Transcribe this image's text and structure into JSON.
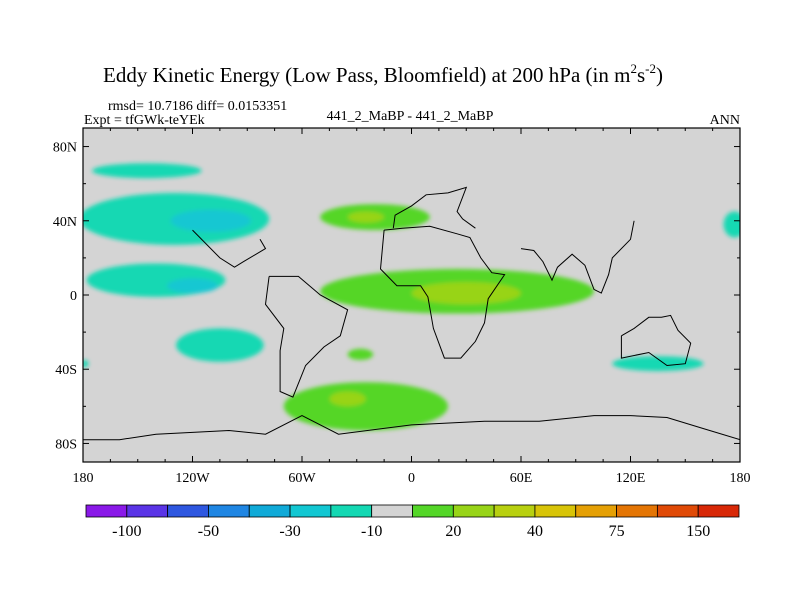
{
  "chart_data": {
    "type": "heatmap",
    "title": "Eddy Kinetic Energy (Low Pass, Bloomfield) at 200 hPa (in m",
    "title_unit_sup1": "2",
    "title_unit_s": "s",
    "title_unit_sup2": "-2",
    "title_unit_close": ")",
    "stats_line": "rmsd= 10.7186 diff= 0.0153351",
    "expt_label": "Expt = tfGWk-teYEk",
    "comparison_label": "441_2_MaBP - 441_2_MaBP",
    "season": "ANN",
    "xlim": [
      -180,
      180
    ],
    "ylim": [
      -90,
      90
    ],
    "xticks": [
      {
        "value": -180,
        "label": "180"
      },
      {
        "value": -120,
        "label": "120W"
      },
      {
        "value": -60,
        "label": "60W"
      },
      {
        "value": 0,
        "label": "0"
      },
      {
        "value": 60,
        "label": "60E"
      },
      {
        "value": 120,
        "label": "120E"
      },
      {
        "value": 180,
        "label": "180"
      }
    ],
    "yticks": [
      {
        "value": 80,
        "label": "80N"
      },
      {
        "value": 40,
        "label": "40N"
      },
      {
        "value": 0,
        "label": "0"
      },
      {
        "value": -40,
        "label": "40S"
      },
      {
        "value": -80,
        "label": "80S"
      }
    ],
    "background_color": "#d4d4d4",
    "colorbar": {
      "colors": [
        "#8a19e8",
        "#5a34e6",
        "#2e57e0",
        "#1f86e3",
        "#10aad8",
        "#12c7d2",
        "#14d8b3",
        "#d4d4d4",
        "#54d628",
        "#98d418",
        "#b8d010",
        "#d8c408",
        "#e5a005",
        "#e47504",
        "#e04a06",
        "#d82807"
      ],
      "labels": [
        {
          "after_box": 1,
          "text": "-100"
        },
        {
          "after_box": 3,
          "text": "-50"
        },
        {
          "after_box": 5,
          "text": "-30"
        },
        {
          "after_box": 7,
          "text": "-10"
        },
        {
          "after_box": 9,
          "text": "20"
        },
        {
          "after_box": 11,
          "text": "40"
        },
        {
          "after_box": 13,
          "text": "75"
        },
        {
          "after_box": 15,
          "text": "150"
        }
      ]
    },
    "regions": [
      {
        "name": "north-pacific-negative-band",
        "lon": -130,
        "lat": 41,
        "rlon": 52,
        "rlat": 14,
        "fill": "#14d8b3"
      },
      {
        "name": "north-pacific-core-negative",
        "lon": -110,
        "lat": 40,
        "rlon": 22,
        "rlat": 6,
        "fill": "#12c7d2"
      },
      {
        "name": "arctic-negative-streak",
        "lon": -145,
        "lat": 67,
        "rlon": 30,
        "rlat": 4,
        "fill": "#14d8b3"
      },
      {
        "name": "tropical-pacific-negative",
        "lon": -140,
        "lat": 8,
        "rlon": 38,
        "rlat": 9,
        "fill": "#14d8b3"
      },
      {
        "name": "tropical-pacific-core-negative",
        "lon": -120,
        "lat": 5,
        "rlon": 14,
        "rlat": 4,
        "fill": "#12c7d2"
      },
      {
        "name": "south-pacific-negative",
        "lon": -105,
        "lat": -27,
        "rlon": 24,
        "rlat": 9,
        "fill": "#14d8b3"
      },
      {
        "name": "north-atlantic-positive",
        "lon": -20,
        "lat": 42,
        "rlon": 30,
        "rlat": 7,
        "fill": "#54d628"
      },
      {
        "name": "north-atlantic-core-positive",
        "lon": -25,
        "lat": 42,
        "rlon": 10,
        "rlat": 3,
        "fill": "#98d418"
      },
      {
        "name": "equatorial-positive-band",
        "lon": 25,
        "lat": 2,
        "rlon": 75,
        "rlat": 12,
        "fill": "#54d628"
      },
      {
        "name": "equatorial-core-positive",
        "lon": 30,
        "lat": 1,
        "rlon": 30,
        "rlat": 6,
        "fill": "#98d418"
      },
      {
        "name": "south-atlantic-small-positive",
        "lon": -28,
        "lat": -32,
        "rlon": 7,
        "rlat": 3,
        "fill": "#54d628"
      },
      {
        "name": "southern-positive-band",
        "lon": -25,
        "lat": -60,
        "rlon": 45,
        "rlat": 13,
        "fill": "#54d628"
      },
      {
        "name": "southern-core-positive",
        "lon": -35,
        "lat": -56,
        "rlon": 10,
        "rlat": 4,
        "fill": "#98d418"
      },
      {
        "name": "southwest-pacific-negative",
        "lon": 135,
        "lat": -37,
        "rlon": 25,
        "rlat": 4,
        "fill": "#14d8b3"
      },
      {
        "name": "northeast-pacific-negative",
        "lon": 177,
        "lat": 38,
        "rlon": 6,
        "rlat": 7,
        "fill": "#14d8b3"
      },
      {
        "name": "west-edge-negative-dot",
        "lon": -179,
        "lat": -37,
        "rlon": 2,
        "rlat": 2,
        "fill": "#14d8b3"
      }
    ],
    "coastlines": [
      {
        "name": "africa-coastline",
        "points": [
          [
            -15,
            35
          ],
          [
            -5,
            36
          ],
          [
            10,
            37
          ],
          [
            25,
            33
          ],
          [
            32,
            31
          ],
          [
            38,
            20
          ],
          [
            44,
            12
          ],
          [
            51,
            11
          ],
          [
            42,
            -2
          ],
          [
            40,
            -15
          ],
          [
            35,
            -25
          ],
          [
            27,
            -34
          ],
          [
            18,
            -34
          ],
          [
            12,
            -18
          ],
          [
            9,
            -1
          ],
          [
            5,
            5
          ],
          [
            -8,
            5
          ],
          [
            -17,
            14
          ],
          [
            -15,
            35
          ]
        ]
      },
      {
        "name": "south-america-coastline",
        "points": [
          [
            -78,
            10
          ],
          [
            -62,
            10
          ],
          [
            -50,
            0
          ],
          [
            -35,
            -8
          ],
          [
            -39,
            -22
          ],
          [
            -48,
            -28
          ],
          [
            -58,
            -38
          ],
          [
            -65,
            -55
          ],
          [
            -72,
            -52
          ],
          [
            -72,
            -30
          ],
          [
            -70,
            -18
          ],
          [
            -80,
            -5
          ],
          [
            -78,
            10
          ]
        ]
      },
      {
        "name": "north-america-coastline",
        "points": [
          [
            -83,
            30
          ],
          [
            -80,
            25
          ],
          [
            -92,
            18
          ],
          [
            -97,
            15
          ],
          [
            -105,
            20
          ],
          [
            -116,
            31
          ],
          [
            -120,
            35
          ]
        ]
      },
      {
        "name": "europe-asia-coastline",
        "points": [
          [
            -10,
            36
          ],
          [
            -9,
            43
          ],
          [
            0,
            48
          ],
          [
            8,
            54
          ],
          [
            20,
            55
          ],
          [
            30,
            58
          ],
          [
            25,
            45
          ],
          [
            28,
            41
          ],
          [
            35,
            36
          ]
        ]
      },
      {
        "name": "south-asia-coastline",
        "points": [
          [
            60,
            25
          ],
          [
            67,
            24
          ],
          [
            72,
            18
          ],
          [
            77,
            8
          ],
          [
            80,
            15
          ],
          [
            88,
            22
          ],
          [
            95,
            16
          ],
          [
            100,
            3
          ],
          [
            104,
            1
          ],
          [
            108,
            11
          ],
          [
            110,
            20
          ],
          [
            120,
            30
          ],
          [
            122,
            40
          ]
        ]
      },
      {
        "name": "australia-coastline",
        "points": [
          [
            115,
            -22
          ],
          [
            122,
            -18
          ],
          [
            130,
            -12
          ],
          [
            137,
            -12
          ],
          [
            142,
            -11
          ],
          [
            146,
            -19
          ],
          [
            153,
            -26
          ],
          [
            150,
            -37
          ],
          [
            140,
            -38
          ],
          [
            130,
            -31
          ],
          [
            115,
            -34
          ],
          [
            115,
            -22
          ]
        ]
      },
      {
        "name": "antarctica-coastline",
        "points": [
          [
            -180,
            -78
          ],
          [
            -160,
            -78
          ],
          [
            -140,
            -75
          ],
          [
            -100,
            -73
          ],
          [
            -80,
            -75
          ],
          [
            -60,
            -65
          ],
          [
            -40,
            -75
          ],
          [
            0,
            -70
          ],
          [
            40,
            -68
          ],
          [
            70,
            -68
          ],
          [
            100,
            -65
          ],
          [
            120,
            -65
          ],
          [
            140,
            -66
          ],
          [
            160,
            -72
          ],
          [
            180,
            -78
          ]
        ]
      }
    ]
  }
}
